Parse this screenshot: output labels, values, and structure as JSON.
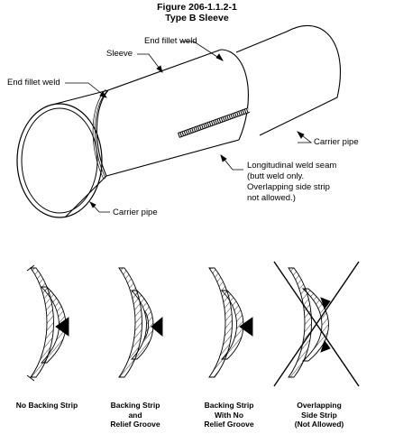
{
  "figure": {
    "title": "Figure 206-1.1.2-1",
    "subtitle": "Type B Sleeve"
  },
  "labels": {
    "end_fillet_weld_top": "End fillet weld",
    "sleeve": "Sleeve",
    "end_fillet_weld_left": "End fillet weld",
    "carrier_pipe_right": "Carrier pipe",
    "longitudinal_line1": "Longitudinal weld seam",
    "longitudinal_line2": "(butt weld only.",
    "longitudinal_line3": "Overlapping side strip",
    "longitudinal_line4": "not allowed.)",
    "carrier_pipe_bottom": "Carrier pipe"
  },
  "details": [
    {
      "lines": [
        "No Backing Strip"
      ]
    },
    {
      "lines": [
        "Backing Strip",
        "and",
        "Relief Groove"
      ]
    },
    {
      "lines": [
        "Backing Strip",
        "With No",
        "Relief Groove"
      ]
    },
    {
      "lines": [
        "Overlapping",
        "Side Strip",
        "(Not Allowed)"
      ]
    }
  ]
}
